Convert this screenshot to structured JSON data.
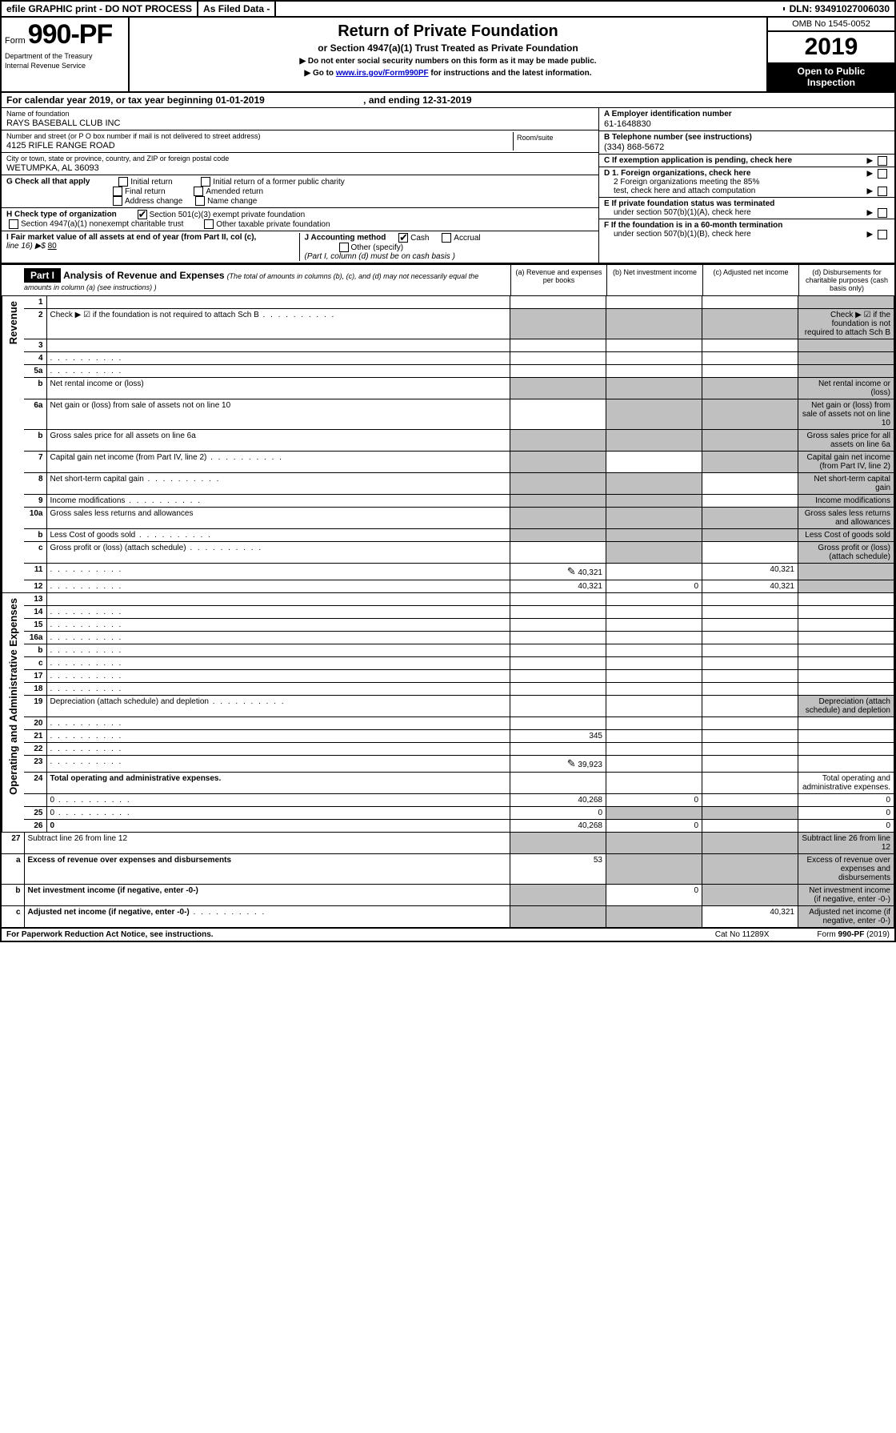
{
  "topbar": {
    "efile": "efile GRAPHIC print - DO NOT PROCESS",
    "asfiled": "As Filed Data -",
    "dln": "DLN: 93491027006030"
  },
  "header": {
    "form_prefix": "Form",
    "form_number": "990-PF",
    "dept1": "Department of the Treasury",
    "dept2": "Internal Revenue Service",
    "title": "Return of Private Foundation",
    "subtitle": "or Section 4947(a)(1) Trust Treated as Private Foundation",
    "note1": "▶ Do not enter social security numbers on this form as it may be made public.",
    "note2_a": "▶ Go to ",
    "note2_link": "www.irs.gov/Form990PF",
    "note2_b": " for instructions and the latest information.",
    "omb": "OMB No 1545-0052",
    "year": "2019",
    "inspect1": "Open to Public",
    "inspect2": "Inspection"
  },
  "calyear": {
    "a": "For calendar year 2019, or tax year beginning 01-01-2019",
    "b": ", and ending 12-31-2019"
  },
  "info": {
    "name_lbl": "Name of foundation",
    "name_val": "RAYS BASEBALL CLUB INC",
    "addr_lbl": "Number and street (or P O  box number if mail is not delivered to street address)",
    "addr_val": "4125 RIFLE RANGE ROAD",
    "room_lbl": "Room/suite",
    "city_lbl": "City or town, state or province, country, and ZIP or foreign postal code",
    "city_val": "WETUMPKA, AL 36093",
    "A_lbl": "A Employer identification number",
    "A_val": "61-1648830",
    "B_lbl": "B Telephone number (see instructions)",
    "B_val": "(334) 868-5672",
    "C_lbl": "C If exemption application is pending, check here",
    "G_lbl": "G Check all that apply",
    "G_opts": [
      "Initial return",
      "Initial return of a former public charity",
      "Final return",
      "Amended return",
      "Address change",
      "Name change"
    ],
    "D1": "D 1. Foreign organizations, check here",
    "D2a": "2 Foreign organizations meeting the 85%",
    "D2b": "test, check here and attach computation",
    "E1": "E  If private foundation status was terminated",
    "E2": "under section 507(b)(1)(A), check here",
    "H_lbl": "H Check type of organization",
    "H_opt1": "Section 501(c)(3) exempt private foundation",
    "H_opt2a": "Section 4947(a)(1) nonexempt charitable trust",
    "H_opt2b": "Other taxable private foundation",
    "F1": "F  If the foundation is in a 60-month termination",
    "F2": "under section 507(b)(1)(B), check here",
    "I_lbl": "I Fair market value of all assets at end of year (from Part II, col  (c),",
    "I_line": "line 16) ▶$ ",
    "I_val": "80",
    "J_lbl": "J Accounting method",
    "J_cash": "Cash",
    "J_accrual": "Accrual",
    "J_other": "Other (specify)",
    "J_note": "(Part I, column (d) must be on cash basis )"
  },
  "part1": {
    "label": "Part I",
    "title": "Analysis of Revenue and Expenses",
    "sub": "(The total of amounts in columns (b), (c), and (d) may not necessarily equal the amounts in column (a) (see instructions) )",
    "cols": {
      "a": "(a)   Revenue and expenses per books",
      "b": "(b)   Net investment income",
      "c": "(c)   Adjusted net income",
      "d": "(d)   Disbursements for charitable purposes (cash basis only)"
    }
  },
  "side_labels": {
    "revenue": "Revenue",
    "opex": "Operating and Administrative Expenses"
  },
  "rows": [
    {
      "n": "1",
      "d": "",
      "a": "",
      "b": "",
      "c": "",
      "shade_d": true
    },
    {
      "n": "2",
      "d": "Check ▶ ☑ if the foundation is not required to attach Sch  B",
      "dots": true,
      "shade_all": true
    },
    {
      "n": "3",
      "d": "",
      "a": "",
      "b": "",
      "c": "",
      "shade_d": true
    },
    {
      "n": "4",
      "d": "",
      "dots": true,
      "a": "",
      "b": "",
      "c": "",
      "shade_d": true
    },
    {
      "n": "5a",
      "d": "",
      "dots": true,
      "a": "",
      "b": "",
      "c": "",
      "shade_d": true
    },
    {
      "n": "b",
      "d": "Net rental income or (loss)",
      "shade_all": true
    },
    {
      "n": "6a",
      "d": "Net gain or (loss) from sale of assets not on line 10",
      "a": "",
      "shade_bcd": true
    },
    {
      "n": "b",
      "d": "Gross sales price for all assets on line 6a",
      "shade_all": true
    },
    {
      "n": "7",
      "d": "Capital gain net income (from Part IV, line 2)",
      "dots": true,
      "b": "",
      "shade_a": true,
      "shade_cd": true
    },
    {
      "n": "8",
      "d": "Net short-term capital gain",
      "dots": true,
      "c": "",
      "shade_ab": true,
      "shade_d": true
    },
    {
      "n": "9",
      "d": "Income modifications",
      "dots": true,
      "c": "",
      "shade_ab": true,
      "shade_d": true
    },
    {
      "n": "10a",
      "d": "Gross sales less returns and allowances",
      "shade_all": true
    },
    {
      "n": "b",
      "d": "Less  Cost of goods sold",
      "dots": true,
      "shade_all": true
    },
    {
      "n": "c",
      "d": "Gross profit or (loss) (attach schedule)",
      "dots": true,
      "a": "",
      "c": "",
      "shade_b": true,
      "shade_d": true
    },
    {
      "n": "11",
      "d": "",
      "dots": true,
      "pencil": true,
      "a": "40,321",
      "b": "",
      "c": "40,321",
      "shade_d": true
    },
    {
      "n": "12",
      "d": "",
      "dots": true,
      "bold": true,
      "a": "40,321",
      "b": "0",
      "c": "40,321",
      "shade_d": true
    }
  ],
  "rows2": [
    {
      "n": "13",
      "d": "",
      "a": "",
      "b": "",
      "c": ""
    },
    {
      "n": "14",
      "d": "",
      "dots": true,
      "a": "",
      "b": "",
      "c": ""
    },
    {
      "n": "15",
      "d": "",
      "dots": true,
      "a": "",
      "b": "",
      "c": ""
    },
    {
      "n": "16a",
      "d": "",
      "dots": true,
      "a": "",
      "b": "",
      "c": ""
    },
    {
      "n": "b",
      "d": "",
      "dots": true,
      "a": "",
      "b": "",
      "c": ""
    },
    {
      "n": "c",
      "d": "",
      "dots": true,
      "a": "",
      "b": "",
      "c": ""
    },
    {
      "n": "17",
      "d": "",
      "dots": true,
      "a": "",
      "b": "",
      "c": ""
    },
    {
      "n": "18",
      "d": "",
      "dots": true,
      "a": "",
      "b": "",
      "c": ""
    },
    {
      "n": "19",
      "d": "Depreciation (attach schedule) and depletion",
      "dots": true,
      "a": "",
      "b": "",
      "c": "",
      "shade_d": true
    },
    {
      "n": "20",
      "d": "",
      "dots": true,
      "a": "",
      "b": "",
      "c": ""
    },
    {
      "n": "21",
      "d": "",
      "dots": true,
      "a": "345",
      "b": "",
      "c": ""
    },
    {
      "n": "22",
      "d": "",
      "dots": true,
      "a": "",
      "b": "",
      "c": ""
    },
    {
      "n": "23",
      "d": "",
      "dots": true,
      "pencil": true,
      "a": "39,923",
      "b": "",
      "c": ""
    },
    {
      "n": "24",
      "d": "Total operating and administrative expenses.",
      "bold": true,
      "nobord": true
    },
    {
      "n": "",
      "d": "0",
      "dots": true,
      "a": "40,268",
      "b": "0",
      "c": ""
    },
    {
      "n": "25",
      "d": "0",
      "dots": true,
      "a": "0",
      "shade_bc": true
    },
    {
      "n": "26",
      "d": "0",
      "bold": true,
      "a": "40,268",
      "b": "0",
      "c": ""
    }
  ],
  "rows3": [
    {
      "n": "27",
      "d": "Subtract line 26 from line 12",
      "shade_all": true
    },
    {
      "n": "a",
      "d": "Excess of revenue over expenses and disbursements",
      "bold": true,
      "a": "53",
      "shade_bcd": true
    },
    {
      "n": "b",
      "d": "Net investment income (if negative, enter -0-)",
      "bold": true,
      "b": "0",
      "shade_a": true,
      "shade_cd": true
    },
    {
      "n": "c",
      "d": "Adjusted net income (if negative, enter -0-)",
      "dots": true,
      "bold": true,
      "c": "40,321",
      "shade_ab": true,
      "shade_d": true
    }
  ],
  "footer": {
    "left": "For Paperwork Reduction Act Notice, see instructions.",
    "mid": "Cat  No  11289X",
    "right": "Form 990-PF (2019)"
  }
}
